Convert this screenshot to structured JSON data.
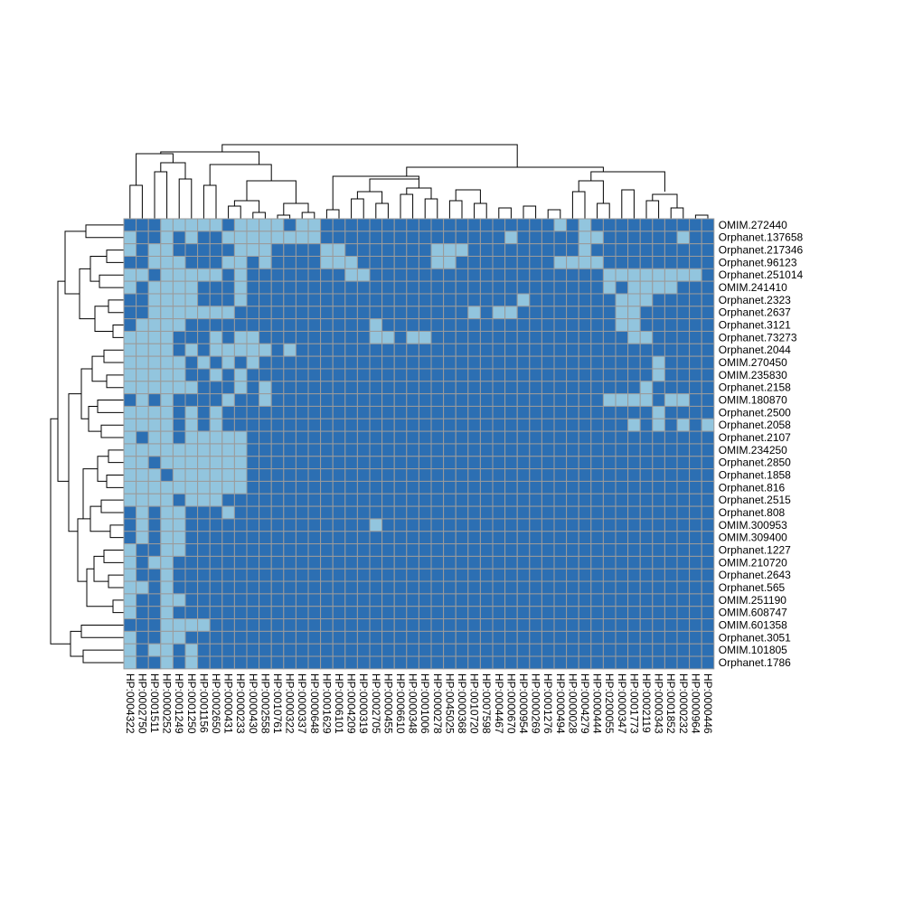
{
  "chart_data": {
    "type": "heatmap",
    "title": "",
    "colors": {
      "present": "#92c5de",
      "absent": "#2c6fb3",
      "grid": "#9b9b9b",
      "dendrogram": "#000000"
    },
    "rows": [
      "OMIM.272440",
      "Orphanet.137658",
      "Orphanet.217346",
      "Orphanet.96123",
      "Orphanet.251014",
      "OMIM.241410",
      "Orphanet.2323",
      "Orphanet.2637",
      "Orphanet.3121",
      "Orphanet.73273",
      "Orphanet.2044",
      "OMIM.270450",
      "OMIM.235830",
      "Orphanet.2158",
      "OMIM.180870",
      "Orphanet.2500",
      "Orphanet.2058",
      "Orphanet.2107",
      "OMIM.234250",
      "Orphanet.2850",
      "Orphanet.1858",
      "Orphanet.816",
      "Orphanet.2515",
      "Orphanet.808",
      "OMIM.300953",
      "OMIM.309400",
      "Orphanet.1227",
      "OMIM.210720",
      "Orphanet.2643",
      "Orphanet.565",
      "OMIM.251190",
      "OMIM.608747",
      "OMIM.601358",
      "Orphanet.3051",
      "OMIM.101805",
      "Orphanet.1786"
    ],
    "columns": [
      "HP:0004322",
      "HP:0002750",
      "HP:0001511",
      "HP:0000252",
      "HP:0001249",
      "HP:0001250",
      "HP:0001156",
      "HP:0002650",
      "HP:0000431",
      "HP:0000233",
      "HP:0000430",
      "HP:0002558",
      "HP:0010761",
      "HP:0000322",
      "HP:0000337",
      "HP:0000648",
      "HP:0001629",
      "HP:0006101",
      "HP:0004209",
      "HP:0000319",
      "HP:0002705",
      "HP:0000455",
      "HP:0006610",
      "HP:0000348",
      "HP:0001006",
      "HP:0000278",
      "HP:0045025",
      "HP:0000368",
      "HP:0010720",
      "HP:0007598",
      "HP:0004467",
      "HP:0000670",
      "HP:0000954",
      "HP:0000269",
      "HP:0001276",
      "HP:0000494",
      "HP:0000028",
      "HP:0004279",
      "HP:0000444",
      "HP:0200055",
      "HP:0000347",
      "HP:0001773",
      "HP:0002119",
      "HP:0000343",
      "HP:0001852",
      "HP:0000232",
      "HP:0000964",
      "HP:0000446"
    ],
    "values": [
      "000111110111101100000000000000000001010000000000",
      "100101001111111100000000000000010000011000000100",
      "101100000111000011000000011100000000010000000000",
      "001110001101000011100000011000000001111000000000",
      "110111110100000000110000000000000000000111111110",
      "101111000100000000000000000000000000000101111000",
      "001111000100000000000000000000001000000011100000",
      "001111111000000000000000000010110000000011000000",
      "011110000000000000001000000000000000000011000000",
      "111100010110000000001101100000000000000001100000",
      "111101011111010000000000000000000000000000000000",
      "111110101010000000000000000000000000000000010000",
      "111110010100000000000000000000000000000000010000",
      "111111000101000000000000000000000000000000100000",
      "010100001001000000000000000000000000000111101100",
      "111101010000000000000000000000000000000000010000",
      "111101010000000000000000000000000000000001010101",
      "101101111100000000000000000000000000000000000000",
      "111111111100000000000000000000000000000000000000",
      "110111111100000000000000000000000000000000000000",
      "111011111100000000000000000000000000000000000000",
      "111111111100000000000000000000000000000000000000",
      "111101110000000000000000000000000000000000000000",
      "010110001000000000000000000000000000000000000000",
      "010110000000000000001000000000000000000000000000",
      "010110000000000000000000000000000000000000000000",
      "100110000000000000000000000000000000000000000000",
      "101100000000000000000000000000000000000000000000",
      "100100000000000000000000000000000000000000000000",
      "110100000000000000000000000000000000000000000000",
      "100110000000000000000000000000000000000000000000",
      "100100000000000000000000000000000000000000000000",
      "000111100000000000000000000000000000000000000000",
      "100110000000000000000000000000000000000000000000",
      "101101000000000000000000000000000000000000000000",
      "100101000000000000000000000000000000000000000000"
    ]
  }
}
